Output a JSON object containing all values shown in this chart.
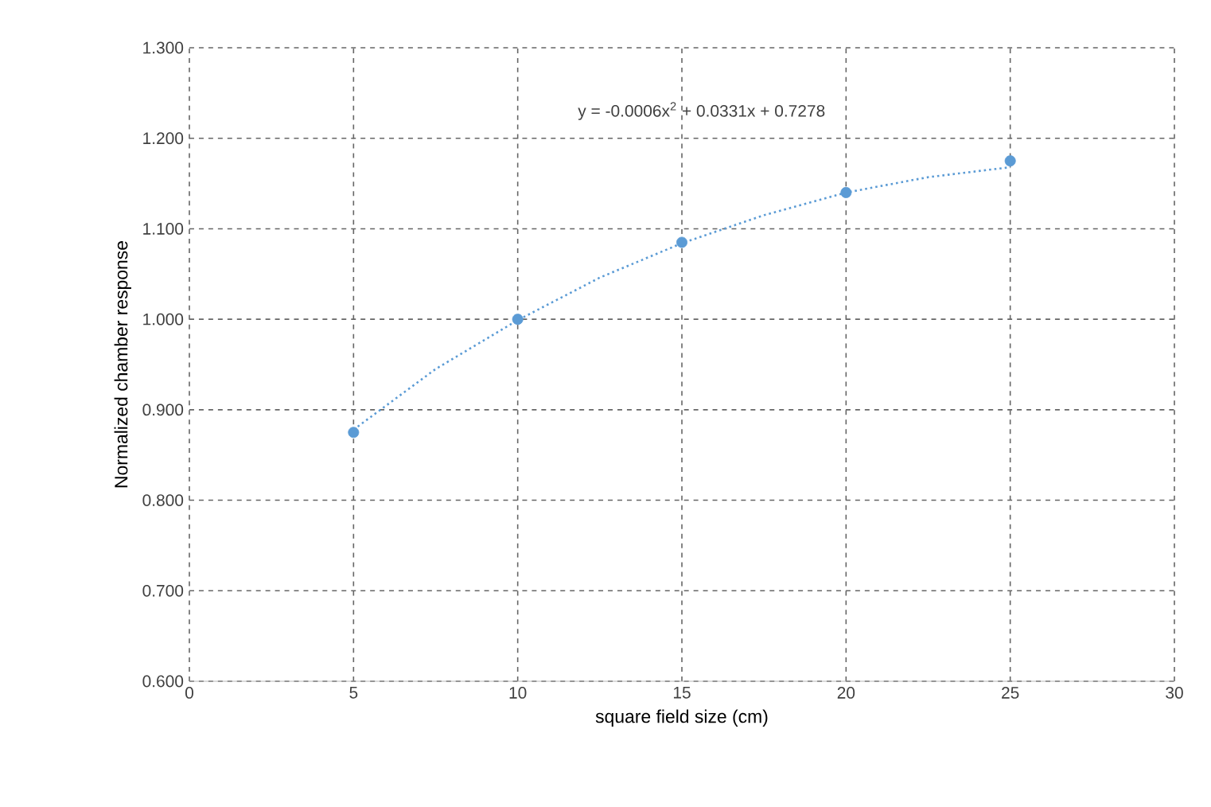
{
  "chart_data": {
    "type": "scatter",
    "xlabel": "square field size (cm)",
    "ylabel": "Normalized chamber response",
    "annotations": [
      "y = -0.0006x$^{2}$ + 0.0331x + 0.7278"
    ],
    "xlim": [
      0,
      30
    ],
    "xticks": [
      0,
      5,
      10,
      15,
      20,
      25,
      30
    ],
    "ylim": [
      0.6,
      1.3
    ],
    "yticks": [
      {
        "value": 0.6,
        "label": "0.600"
      },
      {
        "value": 0.7,
        "label": "0.700"
      },
      {
        "value": 0.8,
        "label": "0.800"
      },
      {
        "value": 0.9,
        "label": "0.900"
      },
      {
        "value": 1.0,
        "label": "1.000"
      },
      {
        "value": 1.1,
        "label": "1.100"
      },
      {
        "value": 1.2,
        "label": "1.200"
      },
      {
        "value": 1.3,
        "label": "1.300"
      }
    ],
    "grid": true,
    "series": [
      {
        "color": "#5b9bd5",
        "marker": "circle",
        "x": [
          5,
          10,
          15,
          20,
          25
        ],
        "values": [
          0.875,
          1.0,
          1.085,
          1.14,
          1.175
        ]
      },
      {
        "type": "line",
        "color": "#5b9bd5",
        "marker": "none",
        "line_style": "dotted",
        "x": [
          5,
          7.5,
          10,
          12.5,
          15,
          17.5,
          20,
          22.5,
          25
        ],
        "values": [
          0.878,
          0.945,
          0.999,
          1.046,
          1.084,
          1.115,
          1.14,
          1.157,
          1.168
        ]
      }
    ]
  }
}
